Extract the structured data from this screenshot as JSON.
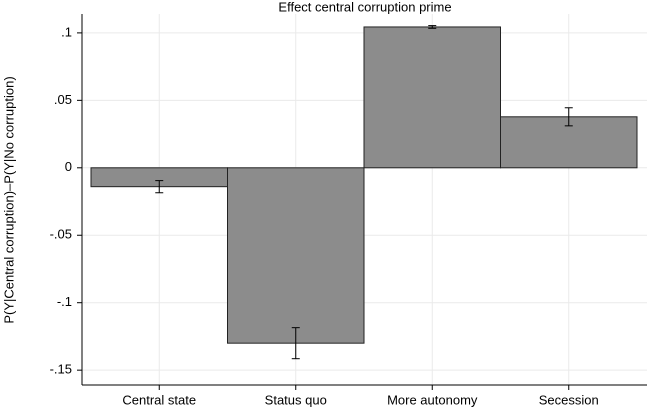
{
  "chart_data": {
    "type": "bar",
    "title": "Effect central corruption prime",
    "y_label": "P(Y|Central corruption)–P(Y|No corruption)",
    "categories": [
      "Central state",
      "Status quo",
      "More autonomy",
      "Secession"
    ],
    "values": [
      -0.014,
      -0.13,
      0.1044,
      0.0378
    ],
    "errors": [
      0.0045,
      0.0115,
      0.001,
      0.0067
    ],
    "color": "#8c8c8c",
    "ylim": [
      -0.161,
      0.114
    ],
    "yticks": [
      {
        "value": 0.1,
        "label": ".1"
      },
      {
        "value": 0.05,
        "label": ".05"
      },
      0,
      {
        "value": -0.05,
        "label": "-.05"
      },
      {
        "value": -0.1,
        "label": "-.1"
      },
      {
        "value": -0.15,
        "label": "-.15"
      }
    ],
    "grid": true
  }
}
